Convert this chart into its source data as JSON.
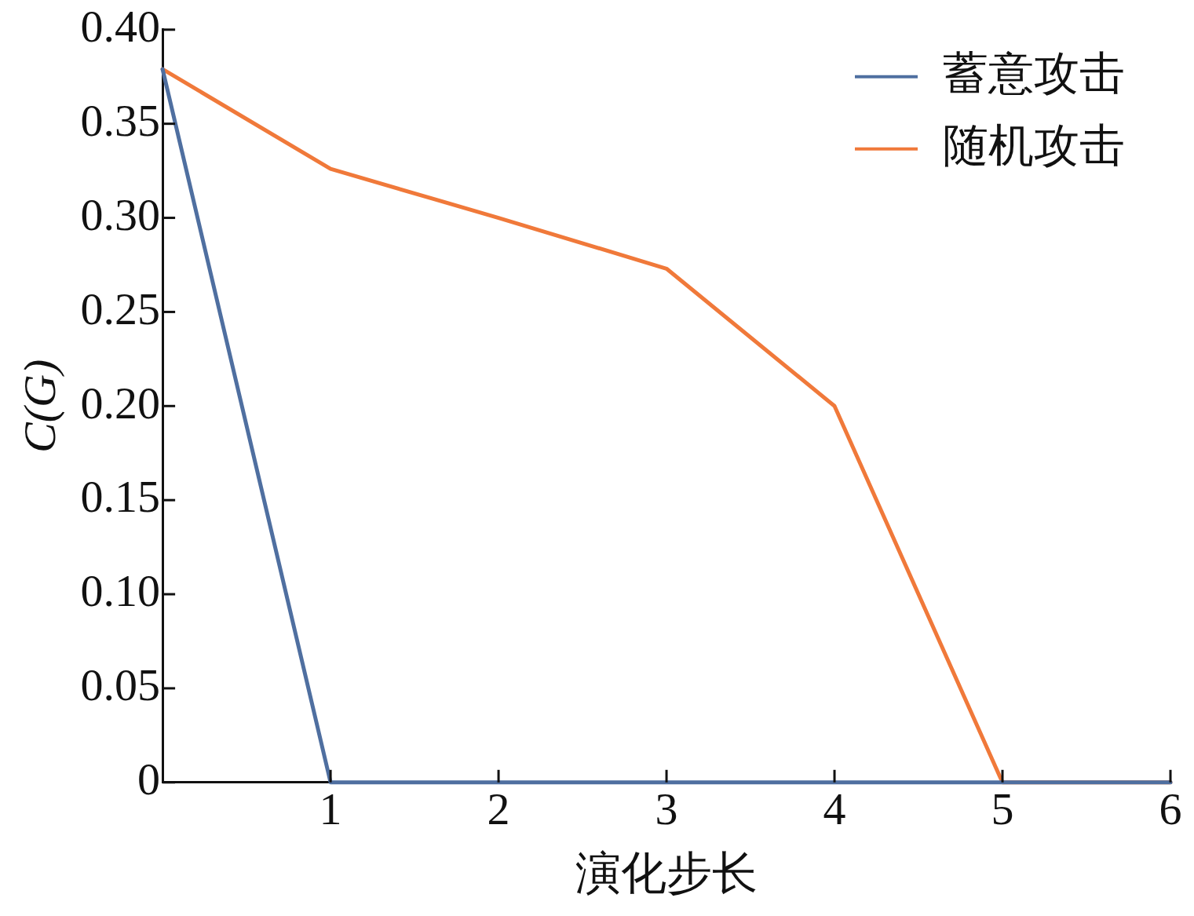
{
  "chart_data": {
    "type": "line",
    "xlabel": "演化步长",
    "ylabel": "C(G)",
    "x": [
      0,
      1,
      2,
      3,
      4,
      5,
      6
    ],
    "series": [
      {
        "name": "蓄意攻击",
        "color": "#4f6fa0",
        "values": [
          0.379,
          0,
          0,
          0,
          0,
          0,
          0
        ]
      },
      {
        "name": "随机攻击",
        "color": "#f0793a",
        "values": [
          0.379,
          0.326,
          0.3,
          0.273,
          0.2,
          0,
          0
        ]
      }
    ],
    "xlim": [
      0,
      6
    ],
    "xticks": [
      1,
      2,
      3,
      4,
      5,
      6
    ],
    "ylim": [
      0,
      0.4
    ],
    "yticks": [
      0,
      0.05,
      {
        "value": 0.1,
        "label": "0.10"
      },
      0.15,
      {
        "value": 0.2,
        "label": "0.20"
      },
      0.25,
      {
        "value": 0.3,
        "label": "0.30"
      },
      0.35,
      {
        "value": 0.4,
        "label": "0.40"
      }
    ],
    "legend": "top right",
    "grid": false,
    "marker": "none",
    "line_style": "solid"
  }
}
